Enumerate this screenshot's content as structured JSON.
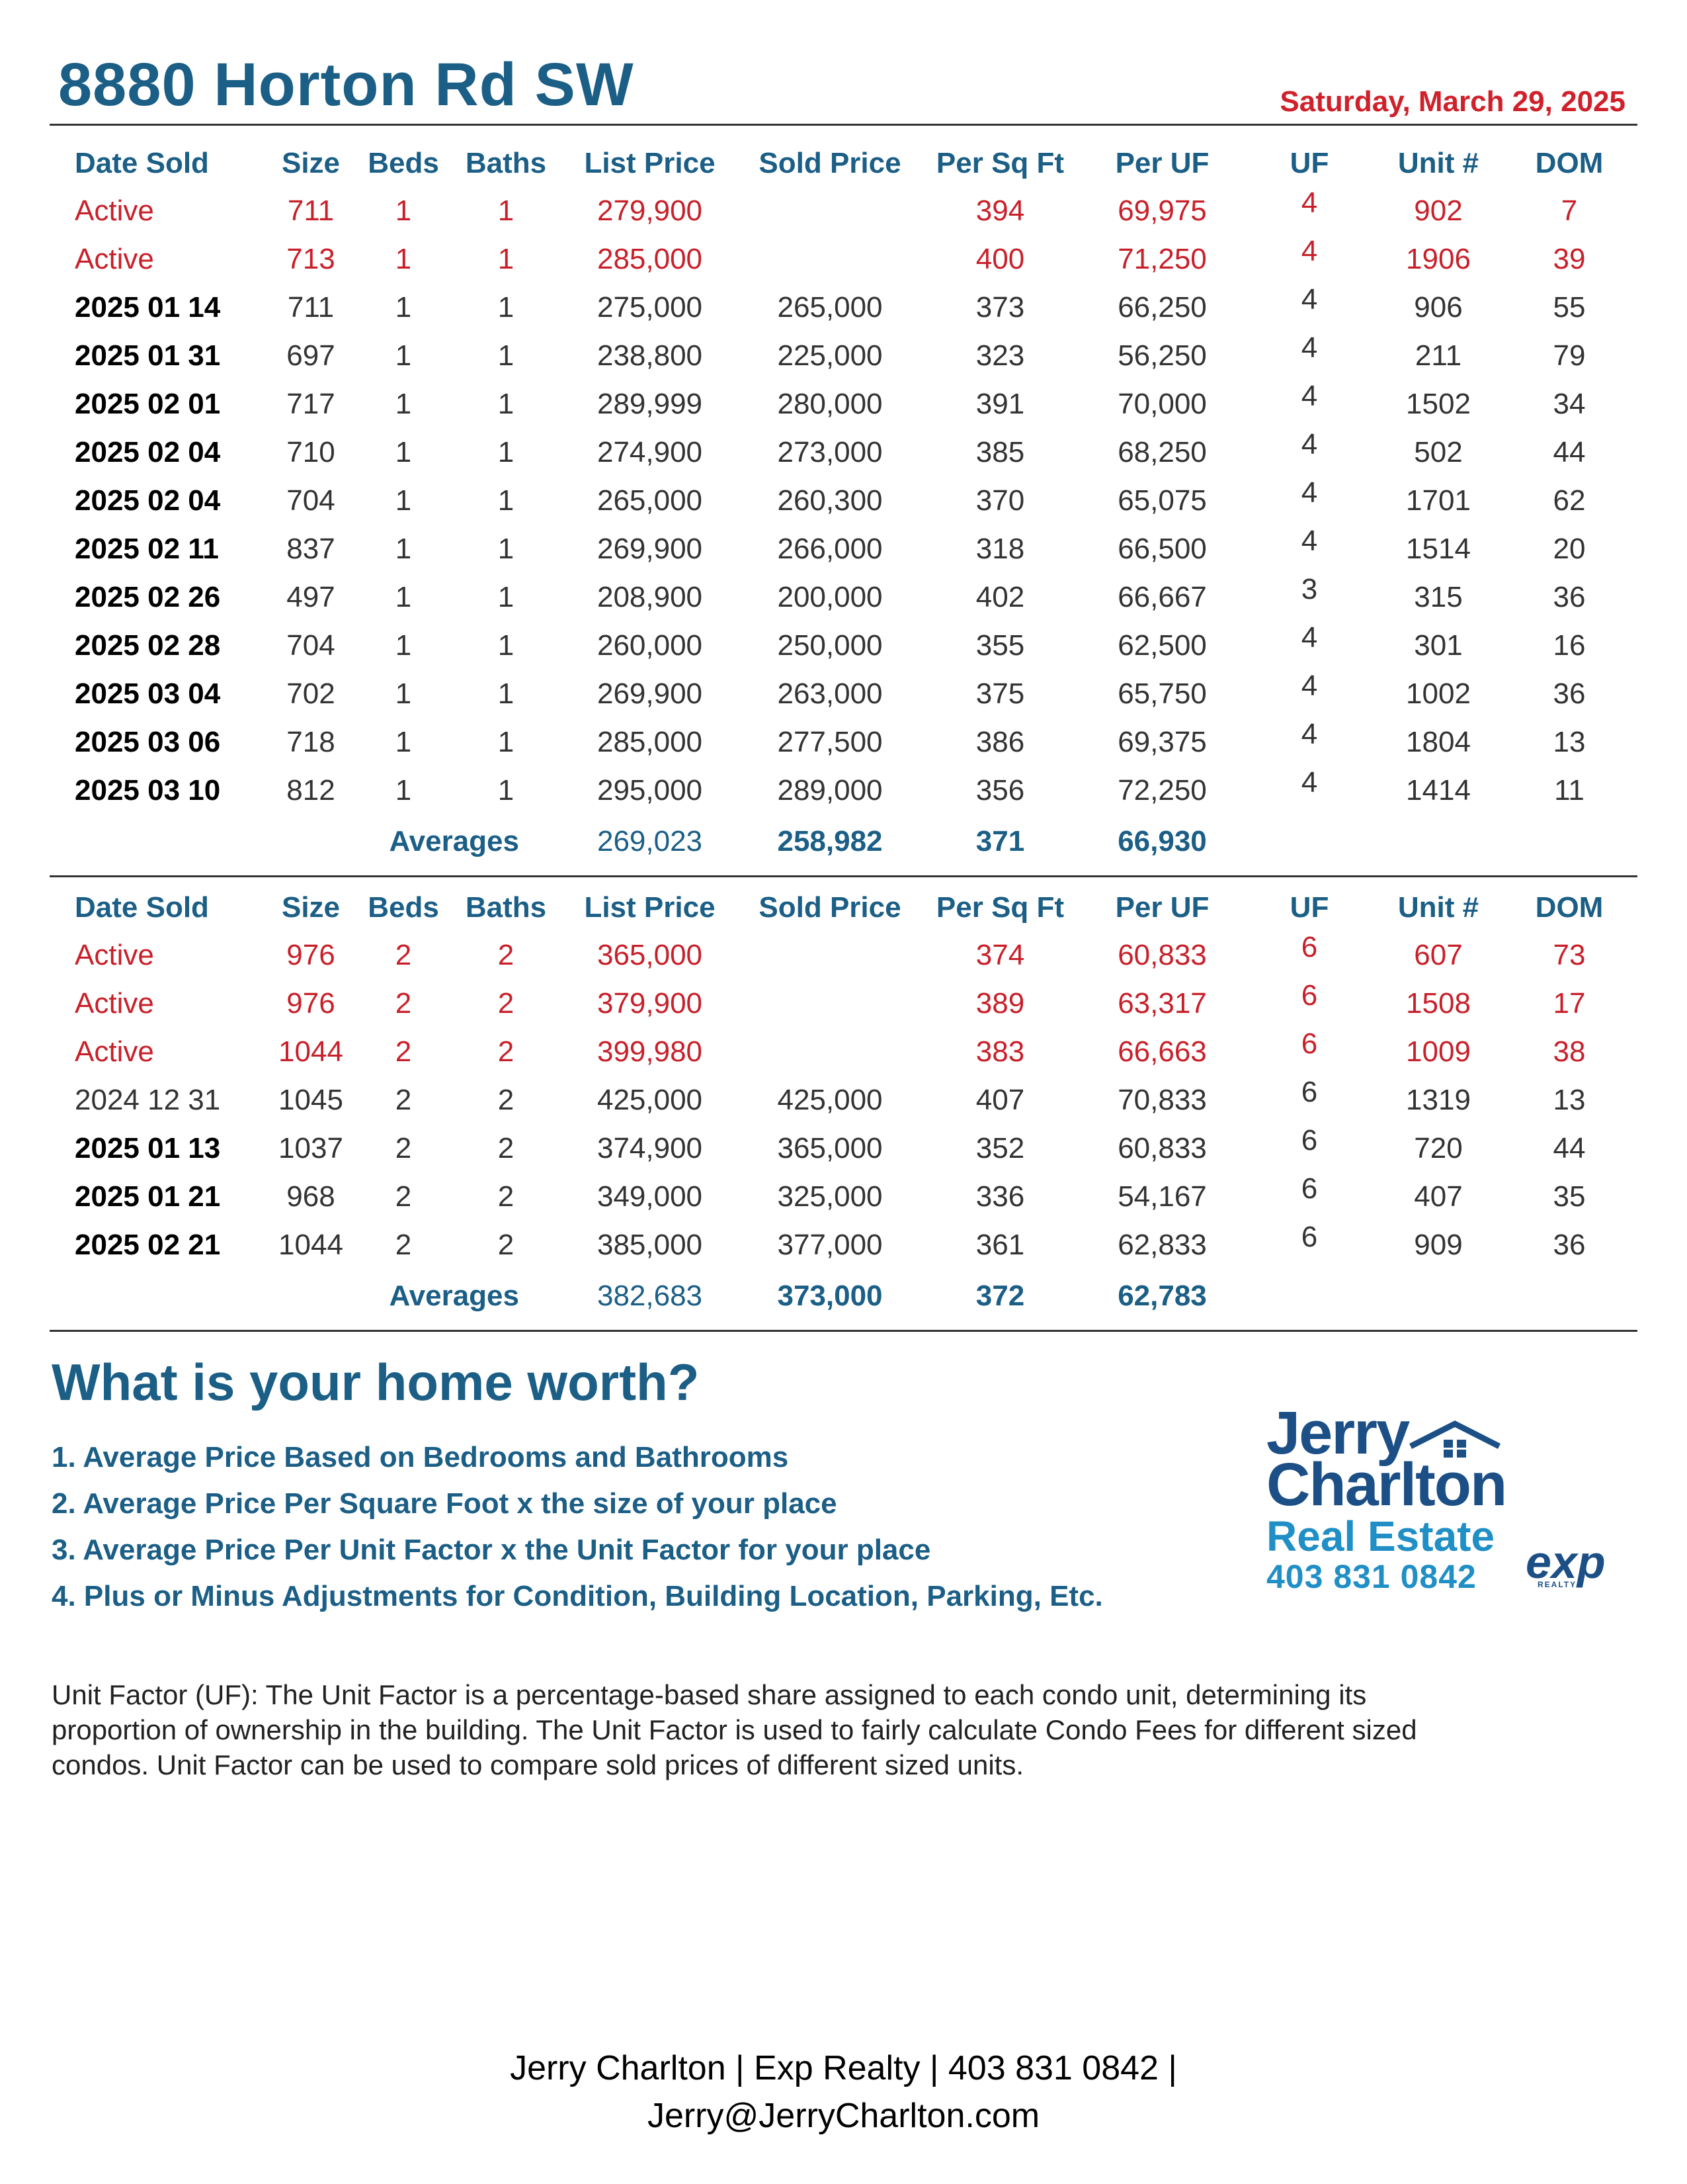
{
  "header": {
    "title": "8880 Horton Rd SW",
    "date": "Saturday, March 29, 2025"
  },
  "columns": [
    "Date Sold",
    "Size",
    "Beds",
    "Baths",
    "List Price",
    "Sold Price",
    "Per Sq Ft",
    "Per UF",
    "UF",
    "Unit #",
    "DOM"
  ],
  "table1": {
    "rows": [
      {
        "status": "active",
        "date": "Active",
        "size": "711",
        "beds": "1",
        "baths": "1",
        "list": "279,900",
        "sold": "",
        "psf": "394",
        "puf": "69,975",
        "uf": "4",
        "unit": "902",
        "dom": "7"
      },
      {
        "status": "active",
        "date": "Active",
        "size": "713",
        "beds": "1",
        "baths": "1",
        "list": "285,000",
        "sold": "",
        "psf": "400",
        "puf": "71,250",
        "uf": "4",
        "unit": "1906",
        "dom": "39"
      },
      {
        "status": "sold",
        "date": "2025 01 14",
        "size": "711",
        "beds": "1",
        "baths": "1",
        "list": "275,000",
        "sold": "265,000",
        "psf": "373",
        "puf": "66,250",
        "uf": "4",
        "unit": "906",
        "dom": "55"
      },
      {
        "status": "sold",
        "date": "2025 01 31",
        "size": "697",
        "beds": "1",
        "baths": "1",
        "list": "238,800",
        "sold": "225,000",
        "psf": "323",
        "puf": "56,250",
        "uf": "4",
        "unit": "211",
        "dom": "79"
      },
      {
        "status": "sold",
        "date": "2025 02 01",
        "size": "717",
        "beds": "1",
        "baths": "1",
        "list": "289,999",
        "sold": "280,000",
        "psf": "391",
        "puf": "70,000",
        "uf": "4",
        "unit": "1502",
        "dom": "34"
      },
      {
        "status": "sold",
        "date": "2025 02 04",
        "size": "710",
        "beds": "1",
        "baths": "1",
        "list": "274,900",
        "sold": "273,000",
        "psf": "385",
        "puf": "68,250",
        "uf": "4",
        "unit": "502",
        "dom": "44"
      },
      {
        "status": "sold",
        "date": "2025 02 04",
        "size": "704",
        "beds": "1",
        "baths": "1",
        "list": "265,000",
        "sold": "260,300",
        "psf": "370",
        "puf": "65,075",
        "uf": "4",
        "unit": "1701",
        "dom": "62"
      },
      {
        "status": "sold",
        "date": "2025 02 11",
        "size": "837",
        "beds": "1",
        "baths": "1",
        "list": "269,900",
        "sold": "266,000",
        "psf": "318",
        "puf": "66,500",
        "uf": "4",
        "unit": "1514",
        "dom": "20"
      },
      {
        "status": "sold",
        "date": "2025 02 26",
        "size": "497",
        "beds": "1",
        "baths": "1",
        "list": "208,900",
        "sold": "200,000",
        "psf": "402",
        "puf": "66,667",
        "uf": "3",
        "unit": "315",
        "dom": "36"
      },
      {
        "status": "sold",
        "date": "2025 02 28",
        "size": "704",
        "beds": "1",
        "baths": "1",
        "list": "260,000",
        "sold": "250,000",
        "psf": "355",
        "puf": "62,500",
        "uf": "4",
        "unit": "301",
        "dom": "16"
      },
      {
        "status": "sold",
        "date": "2025 03 04",
        "size": "702",
        "beds": "1",
        "baths": "1",
        "list": "269,900",
        "sold": "263,000",
        "psf": "375",
        "puf": "65,750",
        "uf": "4",
        "unit": "1002",
        "dom": "36"
      },
      {
        "status": "sold",
        "date": "2025 03 06",
        "size": "718",
        "beds": "1",
        "baths": "1",
        "list": "285,000",
        "sold": "277,500",
        "psf": "386",
        "puf": "69,375",
        "uf": "4",
        "unit": "1804",
        "dom": "13"
      },
      {
        "status": "sold",
        "date": "2025 03 10",
        "size": "812",
        "beds": "1",
        "baths": "1",
        "list": "295,000",
        "sold": "289,000",
        "psf": "356",
        "puf": "72,250",
        "uf": "4",
        "unit": "1414",
        "dom": "11"
      }
    ],
    "averages": {
      "label": "Averages",
      "list": "269,023",
      "sold": "258,982",
      "psf": "371",
      "puf": "66,930"
    }
  },
  "table2": {
    "rows": [
      {
        "status": "active",
        "date": "Active",
        "size": "976",
        "beds": "2",
        "baths": "2",
        "list": "365,000",
        "sold": "",
        "psf": "374",
        "puf": "60,833",
        "uf": "6",
        "unit": "607",
        "dom": "73"
      },
      {
        "status": "active",
        "date": "Active",
        "size": "976",
        "beds": "2",
        "baths": "2",
        "list": "379,900",
        "sold": "",
        "psf": "389",
        "puf": "63,317",
        "uf": "6",
        "unit": "1508",
        "dom": "17"
      },
      {
        "status": "active",
        "date": "Active",
        "size": "1044",
        "beds": "2",
        "baths": "2",
        "list": "399,980",
        "sold": "",
        "psf": "383",
        "puf": "66,663",
        "uf": "6",
        "unit": "1009",
        "dom": "38"
      },
      {
        "status": "sold-plain",
        "date": "2024 12 31",
        "size": "1045",
        "beds": "2",
        "baths": "2",
        "list": "425,000",
        "sold": "425,000",
        "psf": "407",
        "puf": "70,833",
        "uf": "6",
        "unit": "1319",
        "dom": "13"
      },
      {
        "status": "sold",
        "date": "2025 01 13",
        "size": "1037",
        "beds": "2",
        "baths": "2",
        "list": "374,900",
        "sold": "365,000",
        "psf": "352",
        "puf": "60,833",
        "uf": "6",
        "unit": "720",
        "dom": "44"
      },
      {
        "status": "sold",
        "date": "2025 01 21",
        "size": "968",
        "beds": "2",
        "baths": "2",
        "list": "349,000",
        "sold": "325,000",
        "psf": "336",
        "puf": "54,167",
        "uf": "6",
        "unit": "407",
        "dom": "35"
      },
      {
        "status": "sold",
        "date": "2025 02 21",
        "size": "1044",
        "beds": "2",
        "baths": "2",
        "list": "385,000",
        "sold": "377,000",
        "psf": "361",
        "puf": "62,833",
        "uf": "6",
        "unit": "909",
        "dom": "36"
      }
    ],
    "averages": {
      "label": "Averages",
      "list": "382,683",
      "sold": "373,000",
      "psf": "372",
      "puf": "62,783"
    }
  },
  "worth": {
    "heading": "What is your home worth?",
    "steps": [
      "1. Average Price Based on Bedrooms and Bathrooms",
      "2. Average Price Per Square Foot x the size of your place",
      "3. Average Price Per Unit Factor x the Unit Factor for your place",
      "4. Plus or Minus Adjustments for Condition, Building Location, Parking, Etc."
    ],
    "uf_note": "Unit Factor (UF): The Unit Factor is a percentage-based share assigned to each condo unit, determining its proportion of ownership in the building. The Unit Factor is used to fairly calculate Condo Fees for different sized condos. Unit Factor can be used to compare sold prices of different sized units."
  },
  "logo": {
    "line1": "Jerry",
    "line2": "Charlton",
    "line3": "Real Estate",
    "phone": "403 831 0842",
    "brand": "exp",
    "brand_sub": "REALTY",
    "color_dark": "#1b4f86",
    "color_light": "#1f8fc6"
  },
  "footer": {
    "line1": "Jerry Charlton | Exp Realty | 403 831 0842 |",
    "line2": "Jerry@JerryCharlton.com"
  }
}
